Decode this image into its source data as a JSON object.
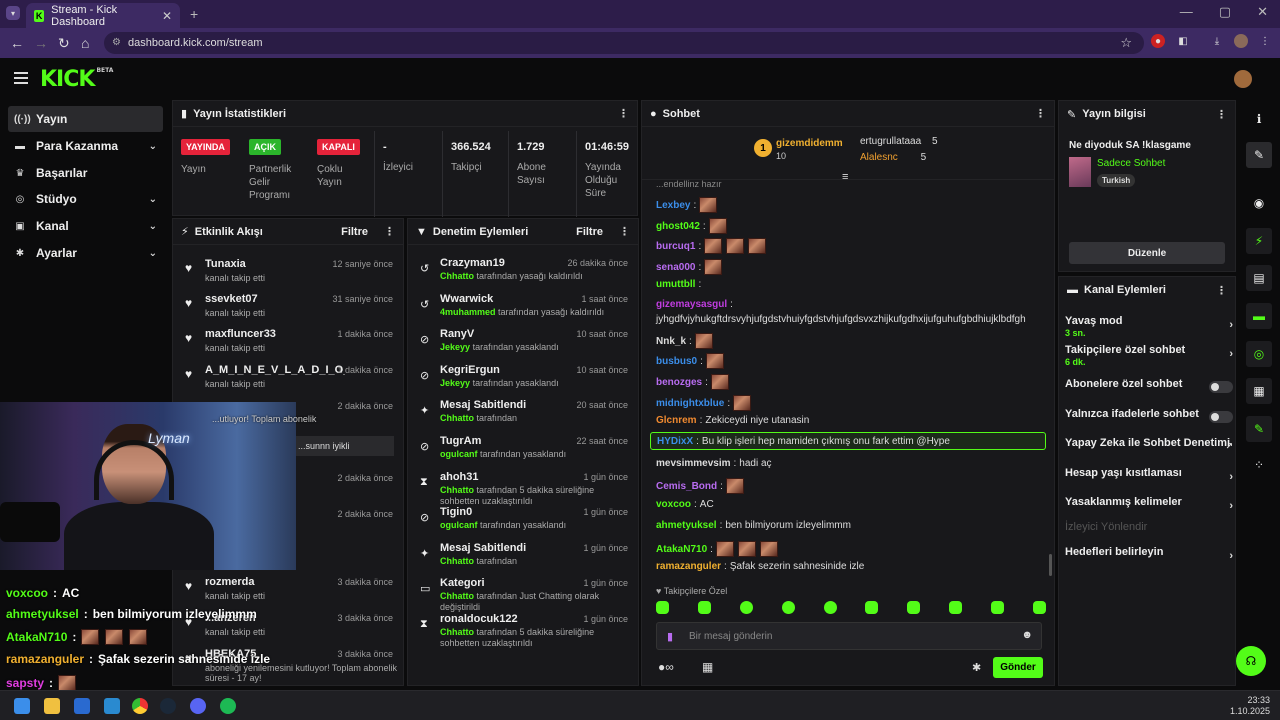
{
  "browser": {
    "tab_title": "Stream - Kick Dashboard",
    "url": "dashboard.kick.com/stream"
  },
  "kick": {
    "logo": "KICK",
    "logo_tag": "BETA"
  },
  "sidebar": {
    "items": [
      {
        "label": "Yayın",
        "icon": "broadcast-icon",
        "active": true
      },
      {
        "label": "Para Kazanma",
        "icon": "money-icon",
        "chevron": true
      },
      {
        "label": "Başarılar",
        "icon": "trophy-icon"
      },
      {
        "label": "Stüdyo",
        "icon": "studio-icon",
        "chevron": true
      },
      {
        "label": "Kanal",
        "icon": "channel-icon",
        "chevron": true
      },
      {
        "label": "Ayarlar",
        "icon": "gear-icon",
        "chevron": true
      }
    ]
  },
  "stats": {
    "title": "Yayın İstatistikleri",
    "cells": [
      {
        "badge": "YAYINDA",
        "badge_color": "#e5233a",
        "label": "Yayın"
      },
      {
        "badge": "AÇIK",
        "badge_color": "#2bb52b",
        "label": "Partnerlik Gelir Programı"
      },
      {
        "badge": "KAPALI",
        "badge_color": "#e5233a",
        "label": "Çoklu Yayın"
      },
      {
        "value": "-",
        "label": "İzleyici"
      },
      {
        "value": "366.524",
        "label": "Takipçi"
      },
      {
        "value": "1.729",
        "label": "Abone Sayısı"
      },
      {
        "value": "01:46:59",
        "label": "Yayında Olduğu Süre"
      }
    ]
  },
  "events": {
    "title": "Etkinlik Akışı",
    "filter": "Filtre",
    "rows": [
      {
        "name": "Tunaxia",
        "sub": "kanalı takip etti",
        "time": "12 saniye önce"
      },
      {
        "name": "ssevket07",
        "sub": "kanalı takip etti",
        "time": "31 saniye önce"
      },
      {
        "name": "maxfluncer33",
        "sub": "kanalı takip etti",
        "time": "1 dakika önce"
      },
      {
        "name": "A_M_I_N_E_V_L_A_D_I_O_C_E",
        "sub": "kanalı takip etti",
        "time": "1 dakika önce"
      },
      {
        "name": "",
        "sub": "",
        "time": "2 dakika önce"
      },
      {
        "name": "",
        "sub": "",
        "time": "2 dakika önce"
      },
      {
        "name": "",
        "sub": "",
        "time": "2 dakika önce"
      },
      {
        "name": "",
        "sub": "",
        "time": "2 dakika önce"
      },
      {
        "name": "rozmerda",
        "sub": "kanalı takip etti",
        "time": "3 dakika önce"
      },
      {
        "name": "...anzeren",
        "sub": "kanalı takip etti",
        "time": "3 dakika önce"
      },
      {
        "name": "HBEKA75",
        "sub": "aboneliği yenilemesini kutluyor! Toplam abonelik süresi - 17 ay!",
        "time": "3 dakika önce"
      }
    ],
    "partial_1": "...utluyor! Toplam abonelik",
    "partial_2": "...sunnn iyikli"
  },
  "moderation": {
    "title": "Denetim Eylemleri",
    "filter": "Filtre",
    "rows": [
      {
        "icon": "undo-icon",
        "name": "Crazyman19",
        "actor": "Chhatto",
        "text": "tarafından yasağı kaldırıldı",
        "time": "26 dakika önce"
      },
      {
        "icon": "undo-icon",
        "name": "Wwarwick",
        "actor": "4muhammed",
        "text": "tarafından yasağı kaldırıldı",
        "time": "1 saat önce"
      },
      {
        "icon": "ban-icon",
        "name": "RanyV",
        "actor": "Jekeyy",
        "text": "tarafından yasaklandı",
        "time": "10 saat önce"
      },
      {
        "icon": "ban-icon",
        "name": "KegriErgun",
        "actor": "Jekeyy",
        "text": "tarafından yasaklandı",
        "time": "10 saat önce"
      },
      {
        "icon": "pin-icon",
        "name": "Mesaj Sabitlendi",
        "actor": "Chhatto",
        "text": "tarafından",
        "time": "20 saat önce"
      },
      {
        "icon": "ban-icon",
        "name": "TugrAm",
        "actor": "ogulcanf",
        "text": "tarafından yasaklandı",
        "time": "22 saat önce"
      },
      {
        "icon": "hourglass-icon",
        "name": "ahoh31",
        "actor": "Chhatto",
        "text": "tarafından 5 dakika süreliğine sohbetten uzaklaştırıldı",
        "time": "1 gün önce"
      },
      {
        "icon": "ban-icon",
        "name": "Tigin0",
        "actor": "ogulcanf",
        "text": "tarafından yasaklandı",
        "time": "1 gün önce"
      },
      {
        "icon": "pin-icon",
        "name": "Mesaj Sabitlendi",
        "actor": "Chhatto",
        "text": "tarafından",
        "time": "1 gün önce"
      },
      {
        "icon": "category-icon",
        "name": "Kategori",
        "actor": "Chhatto",
        "text": "tarafından Just Chatting olarak değiştirildi",
        "time": "1 gün önce"
      },
      {
        "icon": "hourglass-icon",
        "name": "ronaldocuk122",
        "actor": "Chhatto",
        "text": "tarafından 5 dakika süreliğine sohbetten uzaklaştırıldı",
        "time": "1 gün önce"
      }
    ]
  },
  "chat": {
    "title": "Sohbet",
    "top": {
      "rank": "1",
      "name": "gizemdidemm",
      "count": "10",
      "u2": "ertugrullataaa",
      "c2": "5",
      "u3": "Alalesnc",
      "c3": "5"
    },
    "messages": [
      {
        "user": "Lexbey",
        "color": "#3b8eea",
        "text": "",
        "emotes": 1
      },
      {
        "user": "ghost042",
        "color": "#53fc18",
        "text": "",
        "emotes": 1
      },
      {
        "user": "burcuq1",
        "color": "#b86cf0",
        "text": "",
        "emotes": 3
      },
      {
        "user": "sena000",
        "color": "#b86cf0",
        "text": "",
        "emotes": 1
      },
      {
        "user": "umuttbll",
        "color": "#53fc18",
        "text": "",
        "emotes": 0
      },
      {
        "user": "gizemaysasgul",
        "color": "#c03de0",
        "text": "",
        "emotes": 0
      },
      {
        "user": "",
        "color": "#ddd",
        "text": "jyhgdfvjyhukgftdrsvyhjufgdstvhuiyfgdstvhjufgdsvxzhijkufgdhxijufguhufgbdhiujklbdfgh",
        "emotes": 0
      },
      {
        "user": "Nnk_k",
        "color": "#ddd",
        "text": "",
        "emotes": 1
      },
      {
        "user": "busbus0",
        "color": "#3b8eea",
        "text": "",
        "emotes": 1
      },
      {
        "user": "benozges",
        "color": "#b86cf0",
        "text": "",
        "emotes": 1
      },
      {
        "user": "midnightxblue",
        "color": "#3b8eea",
        "text": "",
        "emotes": 1
      },
      {
        "user": "Glcnrem",
        "color": "#f08a30",
        "text": "Zekiceydi niye utanasin",
        "emotes": 0
      },
      {
        "user": "HYDixX",
        "color": "#3b8eea",
        "text": "Bu klip işleri hep mamiden çıkmış onu fark ettim @Hype",
        "emotes": 0,
        "highlight": true
      },
      {
        "user": "mevsimmevsim",
        "color": "#ddd",
        "text": "hadi aç",
        "emotes": 0
      },
      {
        "user": "Cemis_Bond",
        "color": "#b86cf0",
        "text": "",
        "emotes": 1
      },
      {
        "user": "voxcoo",
        "color": "#53fc18",
        "text": "AC",
        "emotes": 0
      },
      {
        "user": "ahmetyuksel",
        "color": "#53fc18",
        "text": "ben bilmiyorum izleyelimmm",
        "emotes": 0
      },
      {
        "user": "AtakaN710",
        "color": "#53fc18",
        "text": "",
        "emotes": 3
      },
      {
        "user": "ramazanguler",
        "color": "#f0b030",
        "text": "Şafak sezerin sahnesinide izle",
        "emotes": 0
      }
    ],
    "top_partial": "...endellinz hazır",
    "followers_only": "Takipçilere Özel",
    "placeholder": "Bir mesaj gönderin",
    "send": "Gönder"
  },
  "stream_info": {
    "title": "Yayın bilgisi",
    "stream_title": "Ne diyoduk SA !klasgame",
    "category": "Sadece Sohbet",
    "tag": "Turkish",
    "edit": "Düzenle"
  },
  "channel_actions": {
    "title": "Kanal Eylemleri",
    "rows": [
      {
        "label": "Yavaş mod",
        "sub": "3 sn.",
        "kind": "chevron"
      },
      {
        "label": "Takipçilere özel sohbet",
        "sub": "6 dk.",
        "kind": "chevron"
      },
      {
        "label": "Abonelere özel sohbet",
        "kind": "toggle"
      },
      {
        "label": "Yalnızca ifadelerle sohbet",
        "kind": "toggle"
      },
      {
        "label": "Yapay Zeka ile Sohbet Denetimi",
        "kind": "external"
      },
      {
        "label": "Hesap yaşı kısıtlaması",
        "kind": "chevron"
      },
      {
        "label": "Yasaklanmış kelimeler",
        "kind": "chevron"
      },
      {
        "label": "İzleyici Yönlendir",
        "kind": "disabled"
      },
      {
        "label": "Hedefleri belirleyin",
        "kind": "chevron"
      }
    ]
  },
  "overlay": {
    "neon": "Lyman",
    "lines": [
      {
        "user": "voxcoo",
        "color": "#53fc18",
        "text": "AC",
        "emotes": 0
      },
      {
        "user": "ahmetyuksel",
        "color": "#53fc18",
        "text": "ben bilmiyorum izleyelimmm",
        "emotes": 0
      },
      {
        "user": "AtakaN710",
        "color": "#53fc18",
        "text": "",
        "emotes": 3
      },
      {
        "user": "ramazanguler",
        "color": "#f0b030",
        "text": "Şafak sezerin sahnesinide izle",
        "emotes": 0
      },
      {
        "user": "sapsty",
        "color": "#e03de0",
        "text": "",
        "emotes": 1
      }
    ]
  },
  "taskbar": {
    "time": "23:33",
    "date": "1.10.2025"
  }
}
